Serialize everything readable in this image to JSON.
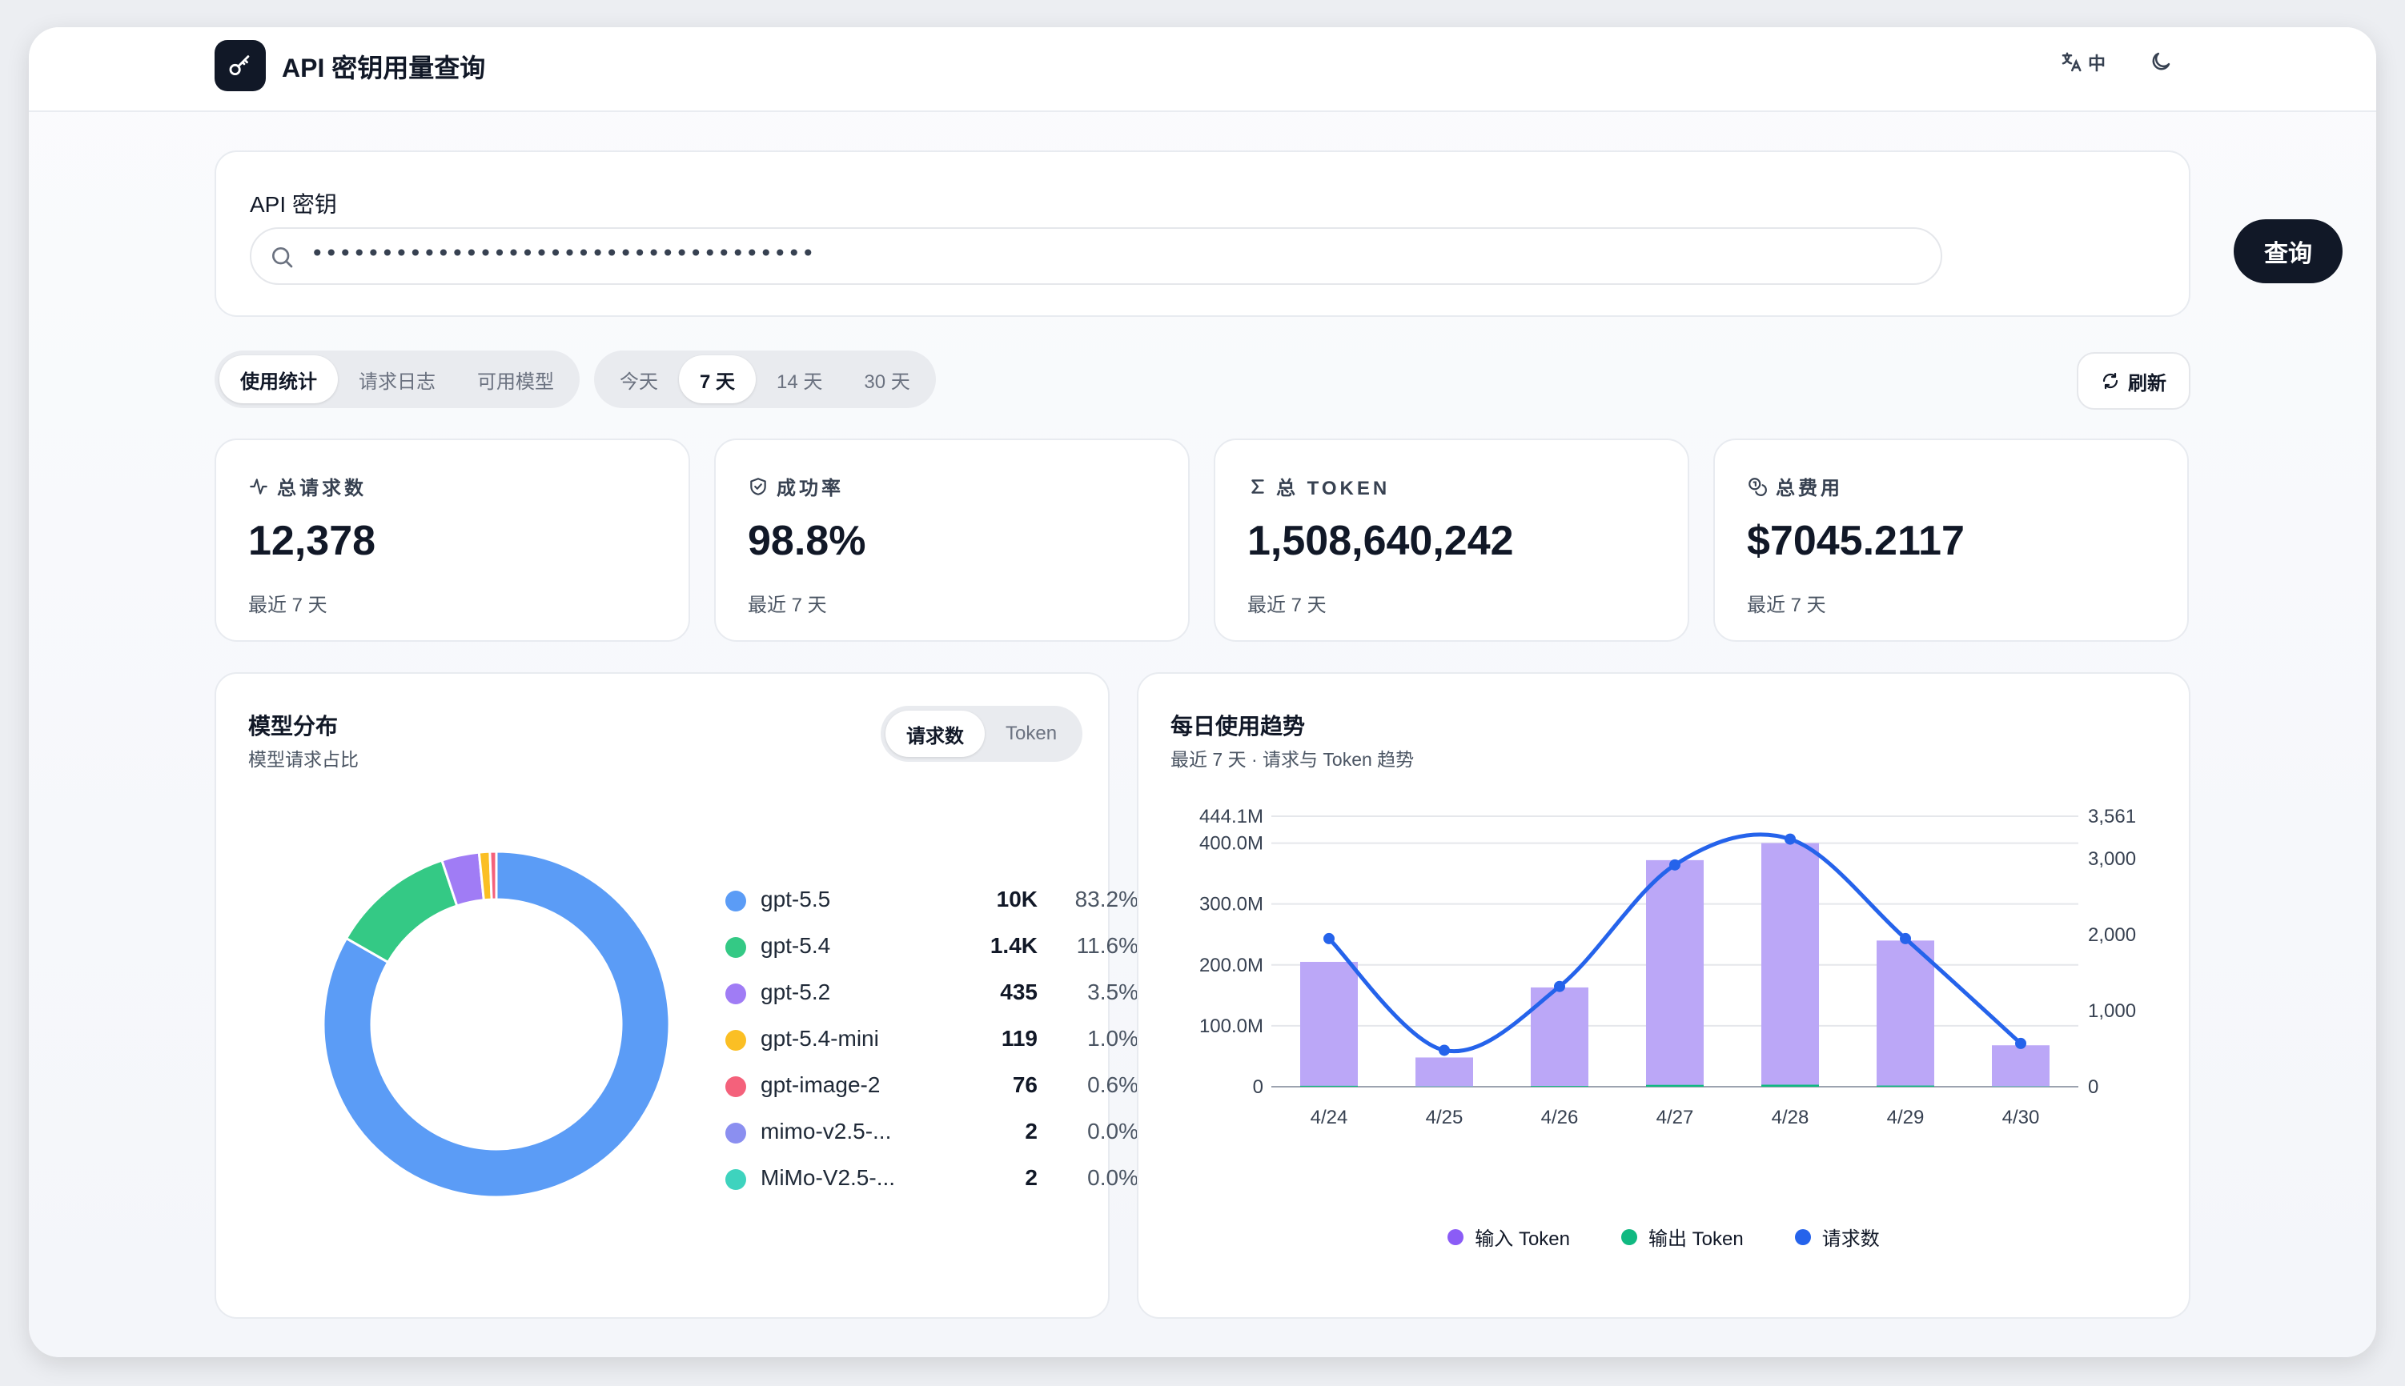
{
  "app": {
    "title": "API 密钥用量查询",
    "lang_label": "中"
  },
  "key": {
    "label": "API 密钥",
    "masked_value": "••••••••••••••••••••••••••••••••••••",
    "query_label": "查询"
  },
  "view_tabs": [
    "使用统计",
    "请求日志",
    "可用模型"
  ],
  "view_active": 0,
  "range_tabs": [
    "今天",
    "7 天",
    "14 天",
    "30 天"
  ],
  "range_active": 1,
  "refresh_label": "刷新",
  "stats": [
    {
      "label": "总请求数",
      "value": "12,378",
      "sub": "最近 7 天",
      "icon": "activity-icon"
    },
    {
      "label": "成功率",
      "value": "98.8%",
      "sub": "最近 7 天",
      "icon": "shield-check-icon"
    },
    {
      "label": "总 TOKEN",
      "value": "1,508,640,242",
      "sub": "最近 7 天",
      "icon": "sigma-icon"
    },
    {
      "label": "总费用",
      "value": "$7045.2117",
      "sub": "最近 7 天",
      "icon": "coins-icon"
    }
  ],
  "model_panel": {
    "title": "模型分布",
    "subtitle": "模型请求占比",
    "toggle": [
      "请求数",
      "Token"
    ],
    "toggle_active": 0
  },
  "trend_panel": {
    "title": "每日使用趋势",
    "subtitle": "最近 7 天 · 请求与 Token 趋势",
    "legend": [
      {
        "label": "输入 Token",
        "color": "#8b5cf6"
      },
      {
        "label": "输出 Token",
        "color": "#10b981"
      },
      {
        "label": "请求数",
        "color": "#2563eb"
      }
    ]
  },
  "chart_data": [
    {
      "type": "pie",
      "title": "模型分布",
      "subtitle": "模型请求占比",
      "slices": [
        {
          "name": "gpt-5.5",
          "count": "10K",
          "percent": 83.2,
          "pct_label": "83.2%",
          "color": "#5b9cf6"
        },
        {
          "name": "gpt-5.4",
          "count": "1.4K",
          "percent": 11.6,
          "pct_label": "11.6%",
          "color": "#34c985"
        },
        {
          "name": "gpt-5.2",
          "count": "435",
          "percent": 3.5,
          "pct_label": "3.5%",
          "color": "#a07cf5"
        },
        {
          "name": "gpt-5.4-mini",
          "count": "119",
          "percent": 1.0,
          "pct_label": "1.0%",
          "color": "#fbbf24"
        },
        {
          "name": "gpt-image-2",
          "count": "76",
          "percent": 0.6,
          "pct_label": "0.6%",
          "color": "#f4617b"
        },
        {
          "name": "mimo-v2.5-...",
          "count": "2",
          "percent": 0.0,
          "pct_label": "0.0%",
          "color": "#8b8ff0"
        },
        {
          "name": "MiMo-V2.5-...",
          "count": "2",
          "percent": 0.0,
          "pct_label": "0.0%",
          "color": "#3ed3be"
        }
      ]
    },
    {
      "type": "bar",
      "title": "每日使用趋势",
      "subtitle": "最近 7 天 · 请求与 Token 趋势",
      "categories": [
        "4/24",
        "4/25",
        "4/26",
        "4/27",
        "4/28",
        "4/29",
        "4/30"
      ],
      "series": [
        {
          "name": "输入 Token",
          "kind": "bar",
          "axis": "left",
          "values": [
            205000000,
            48000000,
            163000000,
            372000000,
            400000000,
            240000000,
            68000000
          ],
          "color": "#bba7f7"
        },
        {
          "name": "输出 Token",
          "kind": "bar",
          "axis": "left",
          "values": [
            1500000,
            400000,
            1200000,
            3000000,
            3300000,
            1900000,
            500000
          ],
          "color": "#10b981"
        },
        {
          "name": "请求数",
          "kind": "line",
          "axis": "right",
          "values": [
            1950,
            480,
            1320,
            2920,
            3260,
            1950,
            570
          ],
          "color": "#2563eb"
        }
      ],
      "y_left": {
        "ticks": [
          "0",
          "100.0M",
          "200.0M",
          "300.0M",
          "400.0M",
          "444.1M"
        ],
        "values": [
          0,
          100000000,
          200000000,
          300000000,
          400000000,
          444100000
        ],
        "range": [
          0,
          444100000
        ]
      },
      "y_right": {
        "ticks": [
          "0",
          "1,000",
          "2,000",
          "3,000",
          "3,561"
        ],
        "values": [
          0,
          1000,
          2000,
          3000,
          3561
        ],
        "range": [
          0,
          3561
        ]
      },
      "grid": true,
      "legend_position": "bottom"
    }
  ]
}
